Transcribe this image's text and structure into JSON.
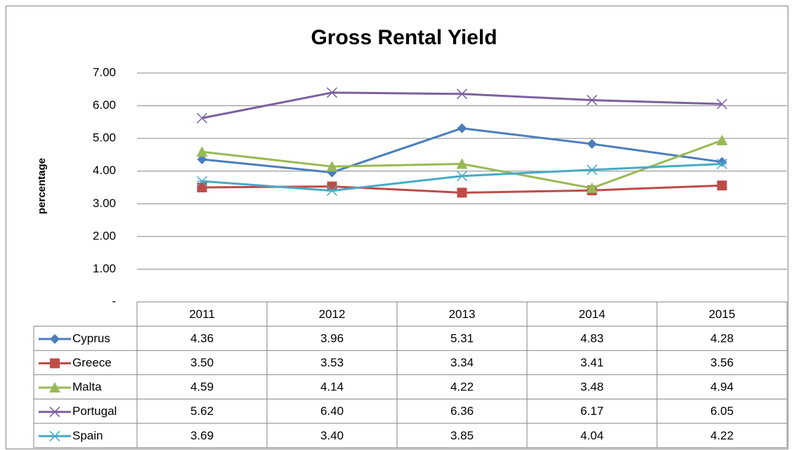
{
  "chart_data": {
    "type": "line",
    "title": "Gross Rental Yield",
    "y_label": "percentage",
    "categories": [
      "2011",
      "2012",
      "2013",
      "2014",
      "2015"
    ],
    "series": [
      {
        "name": "Cyprus",
        "color": "#4a7ebb",
        "marker": "diamond",
        "values": [
          4.36,
          3.96,
          5.31,
          4.83,
          4.28
        ],
        "value_labels": [
          "4.36",
          "3.96",
          "5.31",
          "4.83",
          "4.28"
        ]
      },
      {
        "name": "Greece",
        "color": "#be4b48",
        "marker": "square",
        "values": [
          3.5,
          3.53,
          3.34,
          3.41,
          3.56
        ],
        "value_labels": [
          "3.50",
          "3.53",
          "3.34",
          "3.41",
          "3.56"
        ]
      },
      {
        "name": "Malta",
        "color": "#98b954",
        "marker": "triangle",
        "values": [
          4.59,
          4.14,
          4.22,
          3.48,
          4.94
        ],
        "value_labels": [
          "4.59",
          "4.14",
          "4.22",
          "3.48",
          "4.94"
        ]
      },
      {
        "name": "Portugal",
        "color": "#7d60a0",
        "marker": "x",
        "values": [
          5.62,
          6.4,
          6.36,
          6.17,
          6.05
        ],
        "value_labels": [
          "5.62",
          "6.40",
          "6.36",
          "6.17",
          "6.05"
        ]
      },
      {
        "name": "Spain",
        "color": "#46aac5",
        "marker": "star",
        "values": [
          3.69,
          3.4,
          3.85,
          4.04,
          4.22
        ],
        "value_labels": [
          "3.69",
          "3.40",
          "3.85",
          "4.04",
          "4.22"
        ]
      }
    ],
    "ylim": [
      0,
      7
    ],
    "yticks": [
      {
        "value": 0,
        "label": "-"
      },
      {
        "value": 1,
        "label": "1.00"
      },
      {
        "value": 2,
        "label": "2.00"
      },
      {
        "value": 3,
        "label": "3.00"
      },
      {
        "value": 4,
        "label": "4.00"
      },
      {
        "value": 5,
        "label": "5.00"
      },
      {
        "value": 6,
        "label": "6.00"
      },
      {
        "value": 7,
        "label": "7.00"
      }
    ],
    "grid": true
  }
}
